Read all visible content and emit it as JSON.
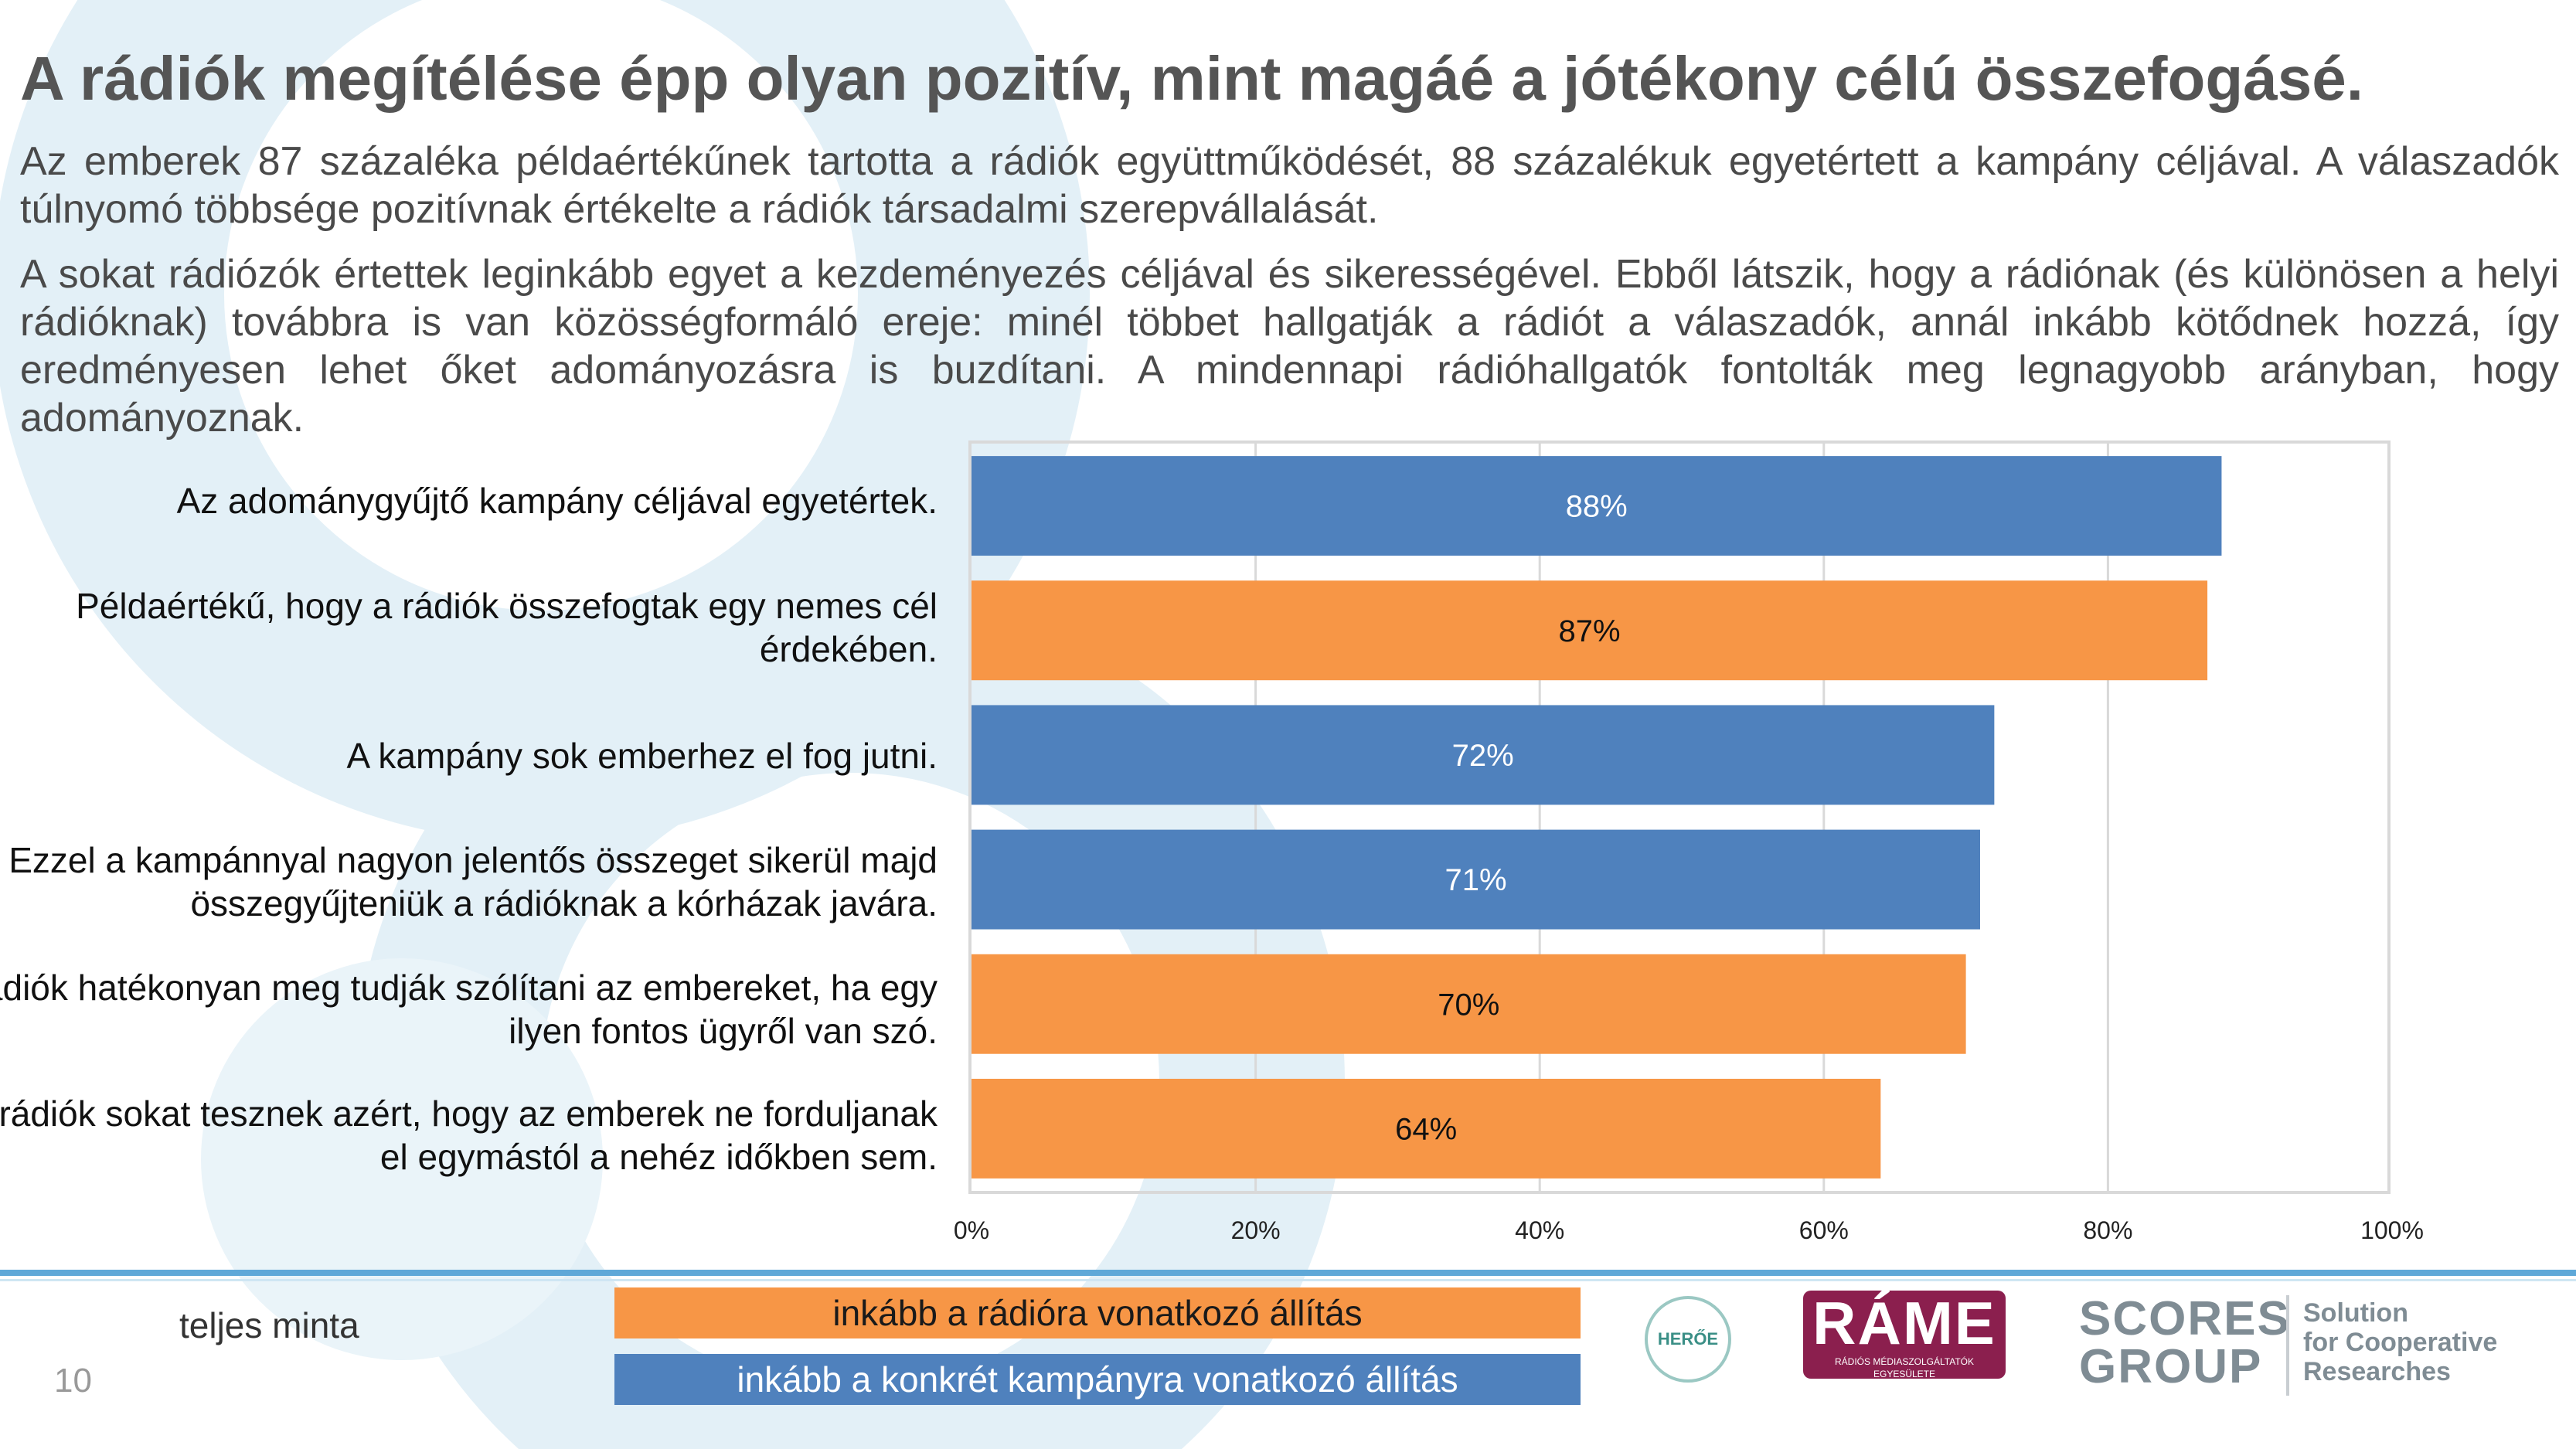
{
  "page": {
    "title": "A rádiók megítélése épp olyan pozitív, mint magáé a jótékony célú összefogásé.",
    "paragraph1": "Az emberek 87 százaléka példaértékűnek tartotta a rádiók együttműködését, 88 százalékuk egyetértett a kampány céljával. A válaszadók túlnyomó többsége pozitívnak értékelte a rádiók társadalmi szerepvállalását.",
    "paragraph2": "A sokat rádiózók értettek leginkább egyet a kezdeményezés céljával és sikerességével. Ebből látszik, hogy a rádiónak (és különösen a helyi rádióknak) továbbra is van közösségformáló ereje: minél többet hallgatják a rádiót a válaszadók, annál inkább kötődnek hozzá, így eredményesen lehet őket adományozásra is buzdítani. A mindennapi rádióhallgatók fontolták meg legnagyobb arányban, hogy adományoznak.",
    "page_number": "10"
  },
  "chart_data": {
    "type": "bar",
    "orientation": "horizontal",
    "categories": [
      "Az adománygyűjtő kampány céljával egyetértek.",
      "Példaértékű, hogy a rádiók összefogtak egy nemes cél érdekében.",
      "A kampány sok emberhez el fog jutni.",
      "Ezzel a kampánnyal nagyon jelentős összeget sikerül majd összegyűjteniük a rádióknak a kórházak javára.",
      "A rádiók hatékonyan meg tudják szólítani az embereket, ha egy ilyen fontos ügyről van szó.",
      "A rádiók sokat tesznek azért, hogy az emberek ne forduljanak el egymástól a nehéz időkben sem."
    ],
    "values": [
      88,
      87,
      72,
      71,
      70,
      64
    ],
    "data_labels": [
      "88%",
      "87%",
      "72%",
      "71%",
      "70%",
      "64%"
    ],
    "bar_groups": [
      "kampany",
      "radio",
      "kampany",
      "kampany",
      "radio",
      "radio"
    ],
    "group_colors": {
      "kampany": "#4f81bd",
      "radio": "#f79646"
    },
    "label_colors": {
      "kampany": "#ffffff",
      "radio": "#111111"
    },
    "xlim": [
      0,
      100
    ],
    "x_ticks": [
      0,
      20,
      40,
      60,
      80,
      100
    ],
    "x_tick_labels": [
      "0%",
      "20%",
      "40%",
      "60%",
      "80%",
      "100%"
    ],
    "grid": true
  },
  "legend": {
    "sample_label": "teljes minta",
    "radio_label": "inkább a rádióra vonatkozó állítás",
    "campaign_label": "inkább a konkrét kampányra vonatkozó állítás"
  },
  "logos": {
    "heroe": "HERŐE",
    "rame": "RÁME",
    "rame_sub": "RÁDIÓS MÉDIASZOLGÁLTATÓK EGYESÜLETE",
    "scores_line1": "SCORES",
    "scores_line2": "GROUP",
    "scores_tagline1": "Solution",
    "scores_tagline2": "for Cooperative",
    "scores_tagline3": "Researches"
  }
}
